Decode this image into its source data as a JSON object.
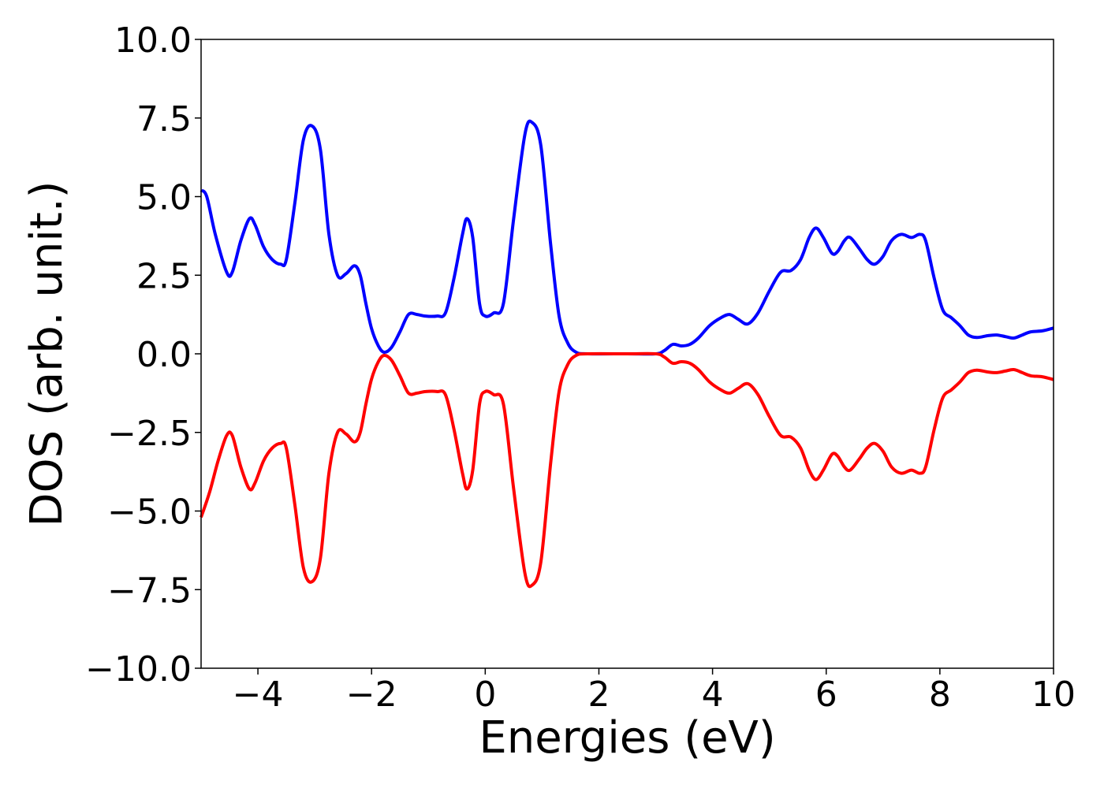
{
  "chart_data": {
    "type": "line",
    "title": "",
    "xlabel": "Energies (eV)",
    "ylabel": "DOS (arb. unit.)",
    "xlim": [
      -5,
      10
    ],
    "ylim": [
      -10,
      10
    ],
    "xticks": [
      -4,
      -2,
      0,
      2,
      4,
      6,
      8,
      10
    ],
    "xtick_labels": [
      "−4",
      "−2",
      "0",
      "2",
      "4",
      "6",
      "8",
      "10"
    ],
    "yticks": [
      10,
      7.5,
      5,
      2.5,
      0,
      -2.5,
      -5,
      -7.5,
      -10
    ],
    "ytick_labels": [
      "10.0",
      "7.5",
      "5.0",
      "2.5",
      "0.0",
      "−2.5",
      "−5.0",
      "−7.5",
      "−10.0"
    ],
    "grid": false,
    "legend": false,
    "series": [
      {
        "color": "#0000ff",
        "points": [
          [
            -5.0,
            5.2
          ],
          [
            -4.9,
            5.0
          ],
          [
            -4.75,
            3.8
          ],
          [
            -4.55,
            2.6
          ],
          [
            -4.45,
            2.6
          ],
          [
            -4.3,
            3.6
          ],
          [
            -4.15,
            4.3
          ],
          [
            -4.05,
            4.1
          ],
          [
            -3.9,
            3.4
          ],
          [
            -3.75,
            3.0
          ],
          [
            -3.6,
            2.85
          ],
          [
            -3.5,
            3.0
          ],
          [
            -3.35,
            4.8
          ],
          [
            -3.2,
            6.8
          ],
          [
            -3.05,
            7.25
          ],
          [
            -2.9,
            6.5
          ],
          [
            -2.75,
            3.8
          ],
          [
            -2.6,
            2.5
          ],
          [
            -2.45,
            2.55
          ],
          [
            -2.3,
            2.8
          ],
          [
            -2.2,
            2.5
          ],
          [
            -2.1,
            1.6
          ],
          [
            -2.0,
            0.8
          ],
          [
            -1.88,
            0.25
          ],
          [
            -1.78,
            0.05
          ],
          [
            -1.65,
            0.2
          ],
          [
            -1.5,
            0.7
          ],
          [
            -1.35,
            1.25
          ],
          [
            -1.2,
            1.25
          ],
          [
            -1.05,
            1.2
          ],
          [
            -0.85,
            1.2
          ],
          [
            -0.7,
            1.3
          ],
          [
            -0.55,
            2.4
          ],
          [
            -0.4,
            3.8
          ],
          [
            -0.32,
            4.3
          ],
          [
            -0.22,
            3.7
          ],
          [
            -0.1,
            1.6
          ],
          [
            0.0,
            1.2
          ],
          [
            0.15,
            1.3
          ],
          [
            0.32,
            1.6
          ],
          [
            0.5,
            4.3
          ],
          [
            0.7,
            7.0
          ],
          [
            0.83,
            7.35
          ],
          [
            0.98,
            6.6
          ],
          [
            1.15,
            3.5
          ],
          [
            1.3,
            1.2
          ],
          [
            1.45,
            0.35
          ],
          [
            1.6,
            0.05
          ],
          [
            1.8,
            0.0
          ],
          [
            2.5,
            0.0
          ],
          [
            3.0,
            0.0
          ],
          [
            3.15,
            0.1
          ],
          [
            3.3,
            0.3
          ],
          [
            3.45,
            0.25
          ],
          [
            3.6,
            0.3
          ],
          [
            3.75,
            0.5
          ],
          [
            3.95,
            0.9
          ],
          [
            4.15,
            1.15
          ],
          [
            4.3,
            1.25
          ],
          [
            4.45,
            1.1
          ],
          [
            4.62,
            0.95
          ],
          [
            4.8,
            1.3
          ],
          [
            5.0,
            2.0
          ],
          [
            5.2,
            2.6
          ],
          [
            5.38,
            2.65
          ],
          [
            5.55,
            3.0
          ],
          [
            5.7,
            3.7
          ],
          [
            5.82,
            4.0
          ],
          [
            5.95,
            3.7
          ],
          [
            6.1,
            3.2
          ],
          [
            6.2,
            3.25
          ],
          [
            6.32,
            3.6
          ],
          [
            6.42,
            3.7
          ],
          [
            6.58,
            3.35
          ],
          [
            6.72,
            3.0
          ],
          [
            6.85,
            2.85
          ],
          [
            7.0,
            3.1
          ],
          [
            7.15,
            3.6
          ],
          [
            7.32,
            3.8
          ],
          [
            7.5,
            3.7
          ],
          [
            7.65,
            3.8
          ],
          [
            7.75,
            3.6
          ],
          [
            7.9,
            2.4
          ],
          [
            8.05,
            1.4
          ],
          [
            8.2,
            1.15
          ],
          [
            8.35,
            0.9
          ],
          [
            8.5,
            0.6
          ],
          [
            8.65,
            0.52
          ],
          [
            8.85,
            0.58
          ],
          [
            9.0,
            0.6
          ],
          [
            9.15,
            0.55
          ],
          [
            9.3,
            0.5
          ],
          [
            9.45,
            0.6
          ],
          [
            9.6,
            0.7
          ],
          [
            9.8,
            0.73
          ],
          [
            10.0,
            0.82
          ]
        ]
      },
      {
        "color": "#ff0000",
        "points": [
          [
            -5.0,
            -5.2
          ],
          [
            -4.85,
            -4.4
          ],
          [
            -4.7,
            -3.4
          ],
          [
            -4.55,
            -2.6
          ],
          [
            -4.45,
            -2.6
          ],
          [
            -4.3,
            -3.6
          ],
          [
            -4.15,
            -4.3
          ],
          [
            -4.05,
            -4.1
          ],
          [
            -3.9,
            -3.4
          ],
          [
            -3.75,
            -3.0
          ],
          [
            -3.6,
            -2.85
          ],
          [
            -3.5,
            -3.0
          ],
          [
            -3.35,
            -4.8
          ],
          [
            -3.2,
            -6.8
          ],
          [
            -3.05,
            -7.25
          ],
          [
            -2.9,
            -6.5
          ],
          [
            -2.75,
            -3.8
          ],
          [
            -2.6,
            -2.5
          ],
          [
            -2.45,
            -2.55
          ],
          [
            -2.3,
            -2.8
          ],
          [
            -2.2,
            -2.5
          ],
          [
            -2.1,
            -1.6
          ],
          [
            -2.0,
            -0.8
          ],
          [
            -1.88,
            -0.25
          ],
          [
            -1.78,
            -0.05
          ],
          [
            -1.65,
            -0.2
          ],
          [
            -1.5,
            -0.7
          ],
          [
            -1.35,
            -1.25
          ],
          [
            -1.2,
            -1.25
          ],
          [
            -1.05,
            -1.2
          ],
          [
            -0.85,
            -1.2
          ],
          [
            -0.7,
            -1.3
          ],
          [
            -0.55,
            -2.4
          ],
          [
            -0.4,
            -3.8
          ],
          [
            -0.32,
            -4.3
          ],
          [
            -0.22,
            -3.7
          ],
          [
            -0.1,
            -1.6
          ],
          [
            0.0,
            -1.2
          ],
          [
            0.15,
            -1.3
          ],
          [
            0.32,
            -1.6
          ],
          [
            0.5,
            -4.3
          ],
          [
            0.7,
            -7.0
          ],
          [
            0.83,
            -7.35
          ],
          [
            0.98,
            -6.6
          ],
          [
            1.15,
            -3.5
          ],
          [
            1.3,
            -1.2
          ],
          [
            1.45,
            -0.35
          ],
          [
            1.6,
            -0.05
          ],
          [
            1.8,
            0.0
          ],
          [
            2.5,
            0.0
          ],
          [
            3.0,
            0.0
          ],
          [
            3.15,
            -0.1
          ],
          [
            3.3,
            -0.3
          ],
          [
            3.45,
            -0.25
          ],
          [
            3.6,
            -0.3
          ],
          [
            3.75,
            -0.5
          ],
          [
            3.95,
            -0.9
          ],
          [
            4.15,
            -1.15
          ],
          [
            4.3,
            -1.25
          ],
          [
            4.45,
            -1.1
          ],
          [
            4.62,
            -0.95
          ],
          [
            4.8,
            -1.3
          ],
          [
            5.0,
            -2.0
          ],
          [
            5.2,
            -2.6
          ],
          [
            5.38,
            -2.65
          ],
          [
            5.55,
            -3.0
          ],
          [
            5.7,
            -3.7
          ],
          [
            5.82,
            -4.0
          ],
          [
            5.95,
            -3.7
          ],
          [
            6.1,
            -3.2
          ],
          [
            6.2,
            -3.25
          ],
          [
            6.32,
            -3.6
          ],
          [
            6.42,
            -3.7
          ],
          [
            6.58,
            -3.35
          ],
          [
            6.72,
            -3.0
          ],
          [
            6.85,
            -2.85
          ],
          [
            7.0,
            -3.1
          ],
          [
            7.15,
            -3.6
          ],
          [
            7.32,
            -3.8
          ],
          [
            7.5,
            -3.7
          ],
          [
            7.65,
            -3.8
          ],
          [
            7.75,
            -3.6
          ],
          [
            7.9,
            -2.4
          ],
          [
            8.05,
            -1.4
          ],
          [
            8.2,
            -1.15
          ],
          [
            8.35,
            -0.9
          ],
          [
            8.5,
            -0.6
          ],
          [
            8.65,
            -0.52
          ],
          [
            8.85,
            -0.58
          ],
          [
            9.0,
            -0.6
          ],
          [
            9.15,
            -0.55
          ],
          [
            9.3,
            -0.5
          ],
          [
            9.45,
            -0.6
          ],
          [
            9.6,
            -0.7
          ],
          [
            9.8,
            -0.73
          ],
          [
            10.0,
            -0.82
          ]
        ]
      }
    ]
  }
}
